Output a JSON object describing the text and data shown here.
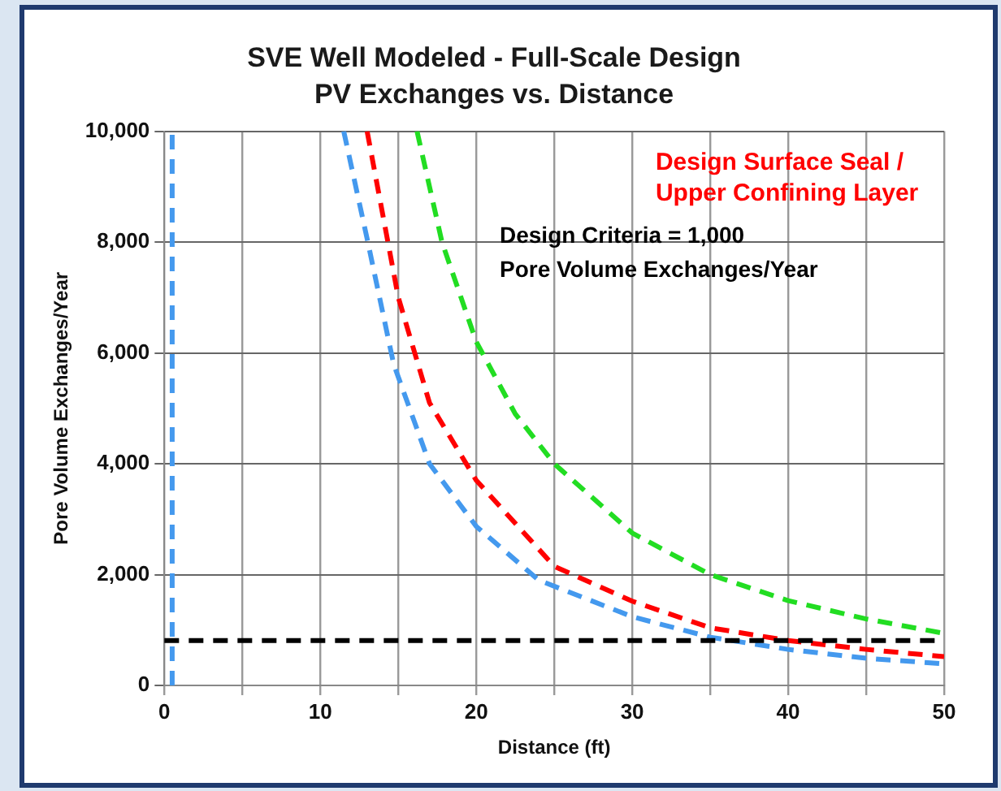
{
  "chart_data": {
    "type": "line",
    "title": "SVE Well Modeled - Full-Scale Design",
    "subtitle": "PV Exchanges vs. Distance",
    "xlabel": "Distance (ft)",
    "ylabel": "Pore Volume Exchanges/Year",
    "xlim": [
      0,
      50
    ],
    "ylim": [
      0,
      10000
    ],
    "xticks": [
      0,
      {
        "value": 5,
        "label": null
      },
      10,
      {
        "value": 15,
        "label": null
      },
      20,
      {
        "value": 25,
        "label": null
      },
      30,
      {
        "value": 35,
        "label": null
      },
      40,
      {
        "value": 45,
        "label": null
      },
      50
    ],
    "yticks": [
      0,
      {
        "value": 2000,
        "label": "2,000"
      },
      {
        "value": 4000,
        "label": "4,000"
      },
      {
        "value": 6000,
        "label": "6,000"
      },
      {
        "value": 8000,
        "label": "8,000"
      },
      {
        "value": 10000,
        "label": "10,000"
      }
    ],
    "grid": true,
    "legend": false,
    "marker": "none",
    "line_style": "dashed",
    "series": [
      {
        "color": "#22dd22",
        "x": [
          16.2,
          17.8,
          20,
          22.5,
          25,
          30,
          35,
          40,
          45,
          50
        ],
        "values": [
          10000,
          8000,
          6200,
          4900,
          4000,
          2750,
          2000,
          1530,
          1200,
          940
        ]
      },
      {
        "name": "Design Surface Seal / Upper Confining Layer",
        "color": "#ff0000",
        "x": [
          13,
          14,
          15,
          17,
          20,
          25,
          30,
          35,
          40,
          45,
          50
        ],
        "values": [
          10000,
          8500,
          7000,
          5100,
          3700,
          2150,
          1520,
          1040,
          810,
          650,
          520
        ]
      },
      {
        "color": "#4499ee",
        "x": [
          0.5,
          0.5,
          5,
          11.5,
          13,
          14.7,
          17,
          20,
          24,
          30,
          35,
          40,
          45,
          50
        ],
        "values": [
          0,
          10000,
          null,
          10000,
          8060,
          5800,
          4000,
          2870,
          1900,
          1240,
          870,
          650,
          490,
          390
        ]
      }
    ],
    "ref_lines": [
      {
        "axis": "y",
        "value": 810,
        "color": "#000000",
        "line_style": "dashed"
      }
    ],
    "annotations": [
      "Design Criteria = 1,000\nPore Volume Exchanges/Year"
    ]
  }
}
